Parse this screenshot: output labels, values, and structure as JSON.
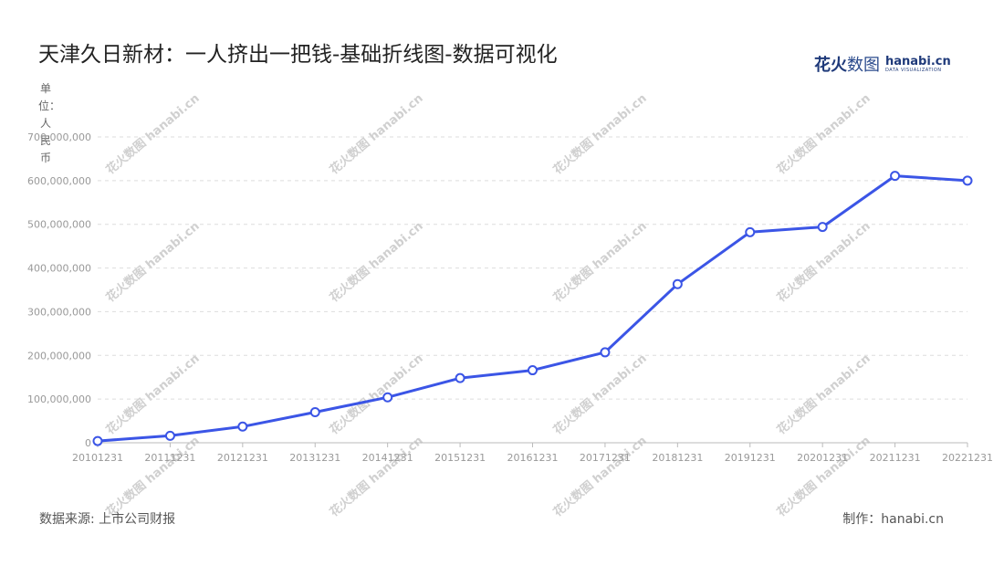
{
  "title": "天津久日新材：一人挤出一把钱-基础折线图-数据可视化",
  "logo": {
    "cn_bold": "花火",
    "cn_thin": "数图",
    "en_big": "hanabi.cn",
    "en_small": "DATA VISUALIZATION"
  },
  "unit_label": "单位：人民币",
  "footer": {
    "source": "数据来源: 上市公司财报",
    "credit": "制作：hanabi.cn"
  },
  "colors": {
    "line": "#3b55e6",
    "grid": "#dddddd",
    "axis": "#999999"
  },
  "chart_data": {
    "type": "line",
    "title": "天津久日新材：一人挤出一把钱-基础折线图-数据可视化",
    "x": [
      "20101231",
      "20111231",
      "20121231",
      "20131231",
      "20141231",
      "20151231",
      "20161231",
      "20171231",
      "20181231",
      "20191231",
      "20201231",
      "20211231",
      "20221231"
    ],
    "series": [
      {
        "values": [
          4000000,
          16000000,
          37000000,
          70000000,
          104000000,
          148000000,
          166000000,
          207000000,
          363000000,
          482000000,
          494000000,
          611000000,
          600000000
        ]
      }
    ],
    "yticks": [
      "0",
      "100,000,000",
      "200,000,000",
      "300,000,000",
      "400,000,000",
      "500,000,000",
      "600,000,000",
      "700,000,000"
    ],
    "ylim": [
      0,
      700000000
    ],
    "ylabel": "单位：人民币",
    "grid": true
  }
}
